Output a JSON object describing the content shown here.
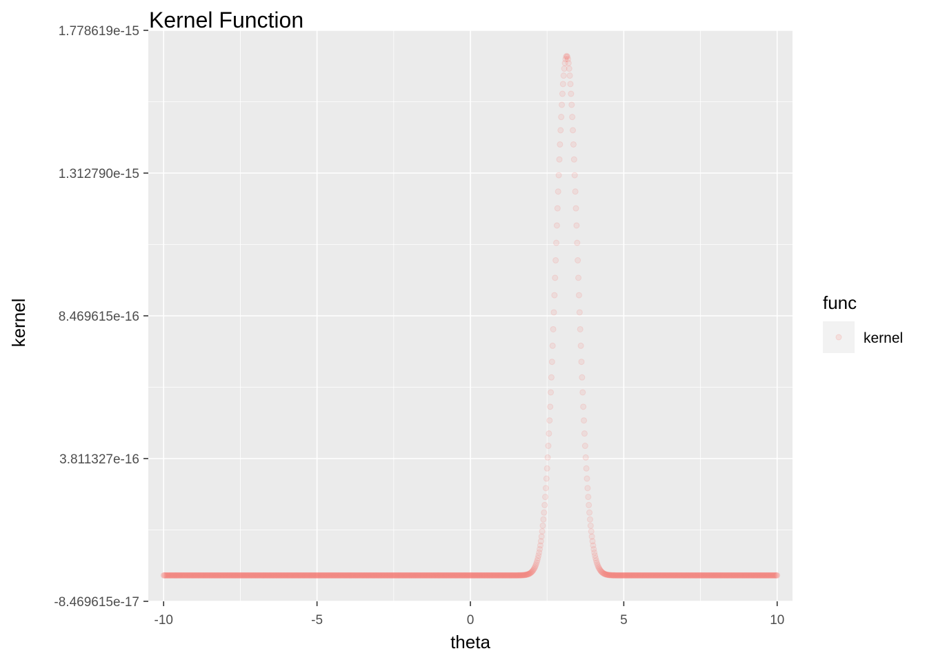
{
  "chart_data": {
    "type": "scatter",
    "title": "Kernel Function",
    "xlabel": "theta",
    "ylabel": "kernel",
    "xlim": [
      -10.5,
      10.5
    ],
    "ylim": [
      -8.469615e-17,
      1.778619e-15
    ],
    "x_ticks": [
      -10,
      -5,
      0,
      5,
      10
    ],
    "x_tick_labels": [
      "-10",
      "-5",
      "0",
      "5",
      "10"
    ],
    "y_ticks": [
      -8.469615e-17,
      3.811327e-16,
      8.469615e-16,
      1.31279e-15,
      1.778619e-15
    ],
    "y_tick_labels": [
      "-8.469615e-17",
      "3.811327e-16",
      "8.469615e-16",
      "1.312790e-15",
      "1.778619e-15"
    ],
    "grid": true,
    "legend": {
      "title": "func",
      "position": "right",
      "entries": [
        "kernel"
      ]
    },
    "series": [
      {
        "name": "kernel",
        "color": "#F8766D",
        "x_range": [
          -10,
          10
        ],
        "point_count": 1001,
        "peak_x": 3.14,
        "peak_y": 1.695e-15,
        "sd": 0.36
      }
    ]
  }
}
